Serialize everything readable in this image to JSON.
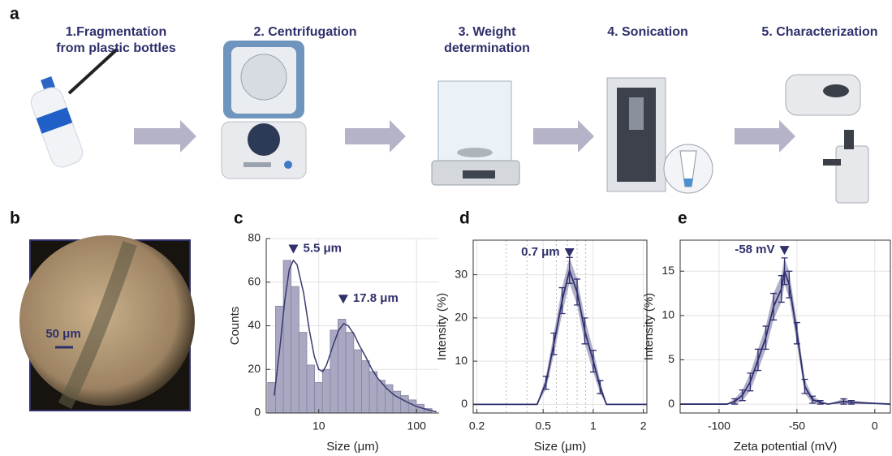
{
  "panel_labels": [
    "a",
    "b",
    "c",
    "d",
    "e"
  ],
  "steps": [
    {
      "lines": [
        "1.Fragmentation",
        "from plastic bottles"
      ]
    },
    {
      "lines": [
        "2. Centrifugation"
      ]
    },
    {
      "lines": [
        "3. Weight",
        "determination"
      ]
    },
    {
      "lines": [
        "4. Sonication"
      ]
    },
    {
      "lines": [
        "5. Characterization"
      ]
    }
  ],
  "micrograph": {
    "scale_bar": "50 μm"
  },
  "chart_data": [
    {
      "type": "histogram",
      "xlabel": "Size (μm)",
      "ylabel": "Counts",
      "xlog": true,
      "grid": true,
      "bins": [
        3.0,
        3.61,
        4.34,
        5.21,
        6.27,
        7.54,
        9.06,
        10.9,
        13.1,
        15.7,
        18.9,
        22.8,
        27.4,
        32.9,
        39.6,
        47.6,
        57.2,
        68.8,
        82.7,
        99.4,
        119.5,
        143.7
      ],
      "counts": [
        14,
        49,
        70,
        58,
        37,
        22,
        14,
        20,
        38,
        43,
        37,
        29,
        24,
        19,
        15,
        13,
        10,
        8,
        6,
        4,
        2
      ],
      "color": "#a9a8c2",
      "edge_color": "#85849f",
      "fit": {
        "x": [
          3.5,
          4,
          4.5,
          5,
          5.5,
          6,
          7,
          8,
          9,
          10,
          11,
          12,
          14,
          16,
          18,
          20,
          23,
          26,
          30,
          35,
          40,
          50,
          60,
          80,
          100,
          130,
          160
        ],
        "values": [
          8,
          30,
          52,
          66,
          70,
          68,
          55,
          38,
          26,
          20,
          19,
          22,
          31,
          38,
          41,
          40,
          36,
          31,
          26,
          20,
          16,
          11,
          8,
          5,
          3,
          1.5,
          0.5
        ],
        "color": "#3a3b6e"
      },
      "annotations": [
        {
          "text": "5.5 μm",
          "x": 5.5,
          "y": 75
        },
        {
          "text": "17.8 μm",
          "x": 17.8,
          "y": 52
        }
      ],
      "xlim": [
        2.9,
        170
      ],
      "ylim": [
        0,
        80
      ],
      "xticks": [
        10,
        100
      ],
      "yticks": [
        0,
        20,
        40,
        60,
        80
      ]
    },
    {
      "type": "errorline",
      "xlabel": "Size (μm)",
      "ylabel": "Intensity (%)",
      "xlog": true,
      "grid": true,
      "x": [
        0.19,
        0.46,
        0.52,
        0.58,
        0.65,
        0.72,
        0.8,
        0.89,
        1.0,
        1.1,
        1.2,
        2.1
      ],
      "series": [
        {
          "values": [
            0,
            0,
            5,
            14,
            24,
            31,
            26,
            17,
            10,
            4,
            0,
            0
          ],
          "errors": [
            0,
            0,
            1.5,
            2.5,
            3,
            3,
            3,
            3,
            2.5,
            1.5,
            0,
            0
          ],
          "color": "#2e2f6e",
          "band_color": "#9d9cbc"
        }
      ],
      "xgrid_minor": [
        0.3,
        0.4,
        0.6,
        0.7,
        0.8,
        0.9
      ],
      "annotations": [
        {
          "text": "0.7 μm",
          "x": 0.72,
          "y": 35
        }
      ],
      "xlim": [
        0.19,
        2.1
      ],
      "ylim": [
        -2,
        38
      ],
      "xticks": [
        0.2,
        0.5,
        1,
        2
      ],
      "yticks": [
        0,
        10,
        20,
        30
      ]
    },
    {
      "type": "errorline",
      "xlabel": "Zeta potential (mV)",
      "ylabel": "Intensity (%)",
      "xlog": false,
      "grid": true,
      "x": [
        -125,
        -95,
        -90,
        -85,
        -80,
        -75,
        -70,
        -65,
        -60,
        -58,
        -55,
        -50,
        -45,
        -40,
        -35,
        -30,
        -20,
        -15,
        10
      ],
      "series": [
        {
          "values": [
            0,
            0,
            0.3,
            1,
            2.5,
            5,
            7.5,
            11,
            13,
            15,
            13.5,
            8,
            2,
            0.5,
            0.2,
            0,
            0.3,
            0.2,
            0
          ],
          "errors": [
            0,
            0,
            0.3,
            0.6,
            1,
            1.2,
            1.3,
            1.5,
            1.5,
            1.5,
            1.5,
            1.2,
            0.8,
            0.4,
            0.2,
            0,
            0.3,
            0.2,
            0
          ],
          "color": "#2e2f6e",
          "band_color": "#9d9cbc"
        }
      ],
      "annotations": [
        {
          "text": "-58 mV",
          "x": -58,
          "y": 17.3
        }
      ],
      "xlim": [
        -125,
        10
      ],
      "ylim": [
        -1,
        18.5
      ],
      "xticks": [
        -100,
        -50,
        0
      ],
      "yticks": [
        0,
        5,
        10,
        15
      ]
    }
  ]
}
